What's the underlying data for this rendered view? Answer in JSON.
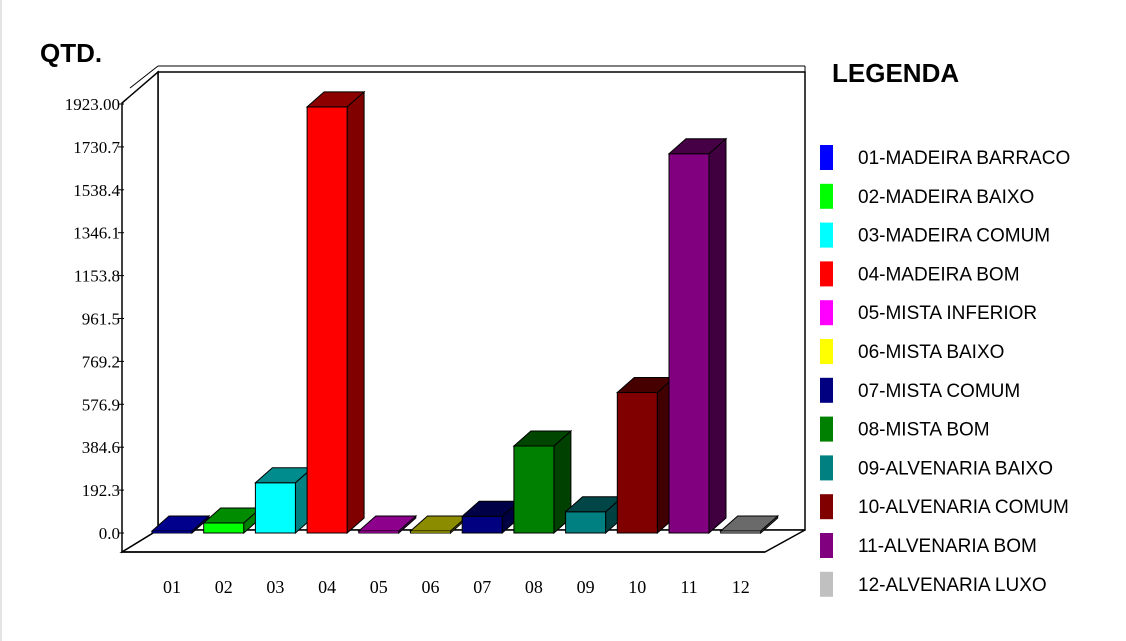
{
  "chart_data": {
    "type": "bar",
    "ylabel": "QTD.",
    "legend_title": "LEGENDA",
    "ylim": [
      0,
      1923
    ],
    "yticks": [
      "0.0",
      "192.3",
      "384.6",
      "576.9",
      "769.2",
      "961.5",
      "1153.8",
      "1346.1",
      "1538.4",
      "1730.7",
      "1923.00"
    ],
    "categories": [
      "01",
      "02",
      "03",
      "04",
      "05",
      "06",
      "07",
      "08",
      "09",
      "10",
      "11",
      "12"
    ],
    "values": [
      4,
      45,
      225,
      1910,
      0,
      0,
      75,
      390,
      95,
      630,
      1700,
      8
    ],
    "colors": [
      "#0000ff",
      "#00ff00",
      "#00ffff",
      "#ff0000",
      "#ff00ff",
      "#ffff00",
      "#000080",
      "#008000",
      "#008080",
      "#800000",
      "#800080",
      "#c0c0c0"
    ],
    "legend": [
      "01-MADEIRA BARRACO",
      "02-MADEIRA BAIXO",
      "03-MADEIRA COMUM",
      "04-MADEIRA BOM",
      "05-MISTA INFERIOR",
      "06-MISTA BAIXO",
      "07-MISTA COMUM",
      "08-MISTA BOM",
      "09-ALVENARIA BAIXO",
      "10-ALVENARIA COMUM",
      "11-ALVENARIA BOM",
      "12-ALVENARIA LUXO"
    ],
    "legend_position": "right",
    "grid": false
  }
}
